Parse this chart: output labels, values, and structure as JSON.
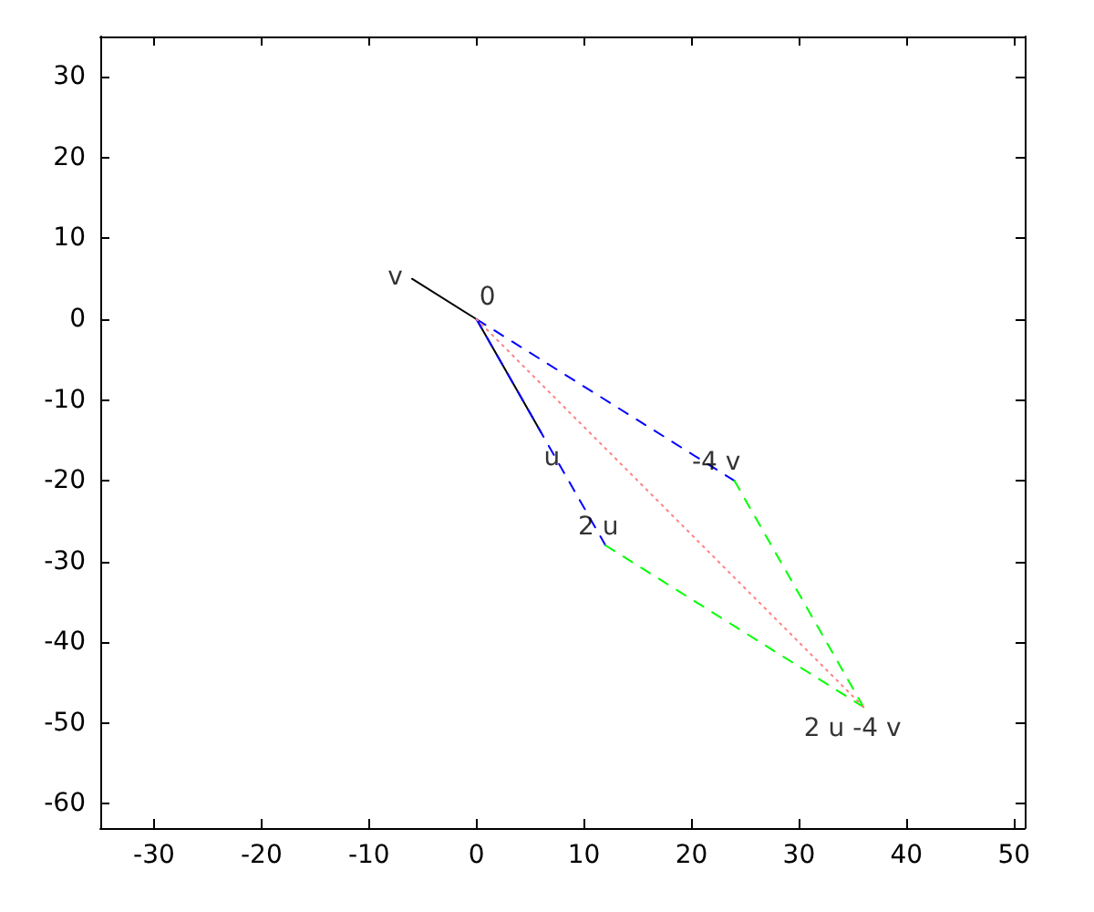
{
  "chart_data": {
    "type": "line",
    "xlim": [
      -35,
      51
    ],
    "ylim": [
      -63,
      35
    ],
    "xticks": [
      -30,
      -20,
      -10,
      0,
      10,
      20,
      30,
      40,
      50
    ],
    "yticks": [
      -60,
      -50,
      -40,
      -30,
      -20,
      -10,
      0,
      10,
      20,
      30
    ],
    "grid": false,
    "marker": "none",
    "series": [
      {
        "color": "#000000",
        "line_style": "solid",
        "x": [
          0,
          -6
        ],
        "values": [
          0,
          5
        ]
      },
      {
        "color": "#000000",
        "line_style": "solid",
        "x": [
          0,
          6
        ],
        "values": [
          0,
          -14
        ]
      },
      {
        "color": "#0000ff",
        "line_style": "dashed",
        "x": [
          0,
          12
        ],
        "values": [
          0,
          -28
        ]
      },
      {
        "color": "#0000ff",
        "line_style": "dashed",
        "x": [
          0,
          24
        ],
        "values": [
          0,
          -20
        ]
      },
      {
        "color": "#00ff00",
        "line_style": "dashed",
        "x": [
          12,
          36
        ],
        "values": [
          -28,
          -48
        ]
      },
      {
        "color": "#00ff00",
        "line_style": "dashed",
        "x": [
          24,
          36
        ],
        "values": [
          -20,
          -48
        ]
      },
      {
        "color": "#ff8080",
        "line_style": "dotted",
        "x": [
          0,
          36
        ],
        "values": [
          0,
          -48
        ]
      }
    ],
    "annotations": [
      {
        "text": "v",
        "x": -6,
        "y": 5
      },
      {
        "text": "0",
        "x": 0,
        "y": 0
      },
      {
        "text": "u",
        "x": 6,
        "y": -14
      },
      {
        "text": "2 u",
        "x": 12,
        "y": -28
      },
      {
        "text": "-4 v",
        "x": 24,
        "y": -20
      },
      {
        "text": "2 u -4 v",
        "x": 36,
        "y": -48
      }
    ]
  }
}
